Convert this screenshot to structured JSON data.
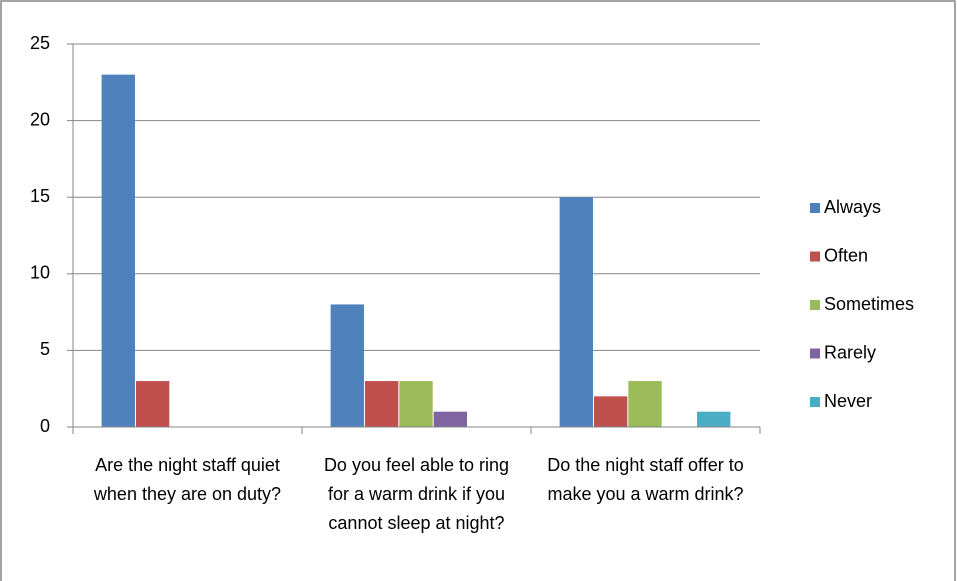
{
  "chart_data": {
    "type": "bar",
    "categories": [
      "Are the night staff quiet when they are on duty?",
      "Do you feel able to ring for a warm drink if you cannot sleep at night?",
      "Do the night staff offer to make you a warm drink?"
    ],
    "series": [
      {
        "name": "Always",
        "color": "#4f81bd",
        "values": [
          23,
          8,
          15
        ]
      },
      {
        "name": "Often",
        "color": "#c0504d",
        "values": [
          3,
          3,
          2
        ]
      },
      {
        "name": "Sometimes",
        "color": "#9bbb59",
        "values": [
          0,
          3,
          3
        ]
      },
      {
        "name": "Rarely",
        "color": "#8064a2",
        "values": [
          0,
          1,
          0
        ]
      },
      {
        "name": "Never",
        "color": "#4bacc6",
        "values": [
          0,
          0,
          1
        ]
      }
    ],
    "ylim": [
      0,
      25
    ],
    "yticks": [
      0,
      5,
      10,
      15,
      20,
      25
    ],
    "grid": true,
    "legend": "right"
  }
}
